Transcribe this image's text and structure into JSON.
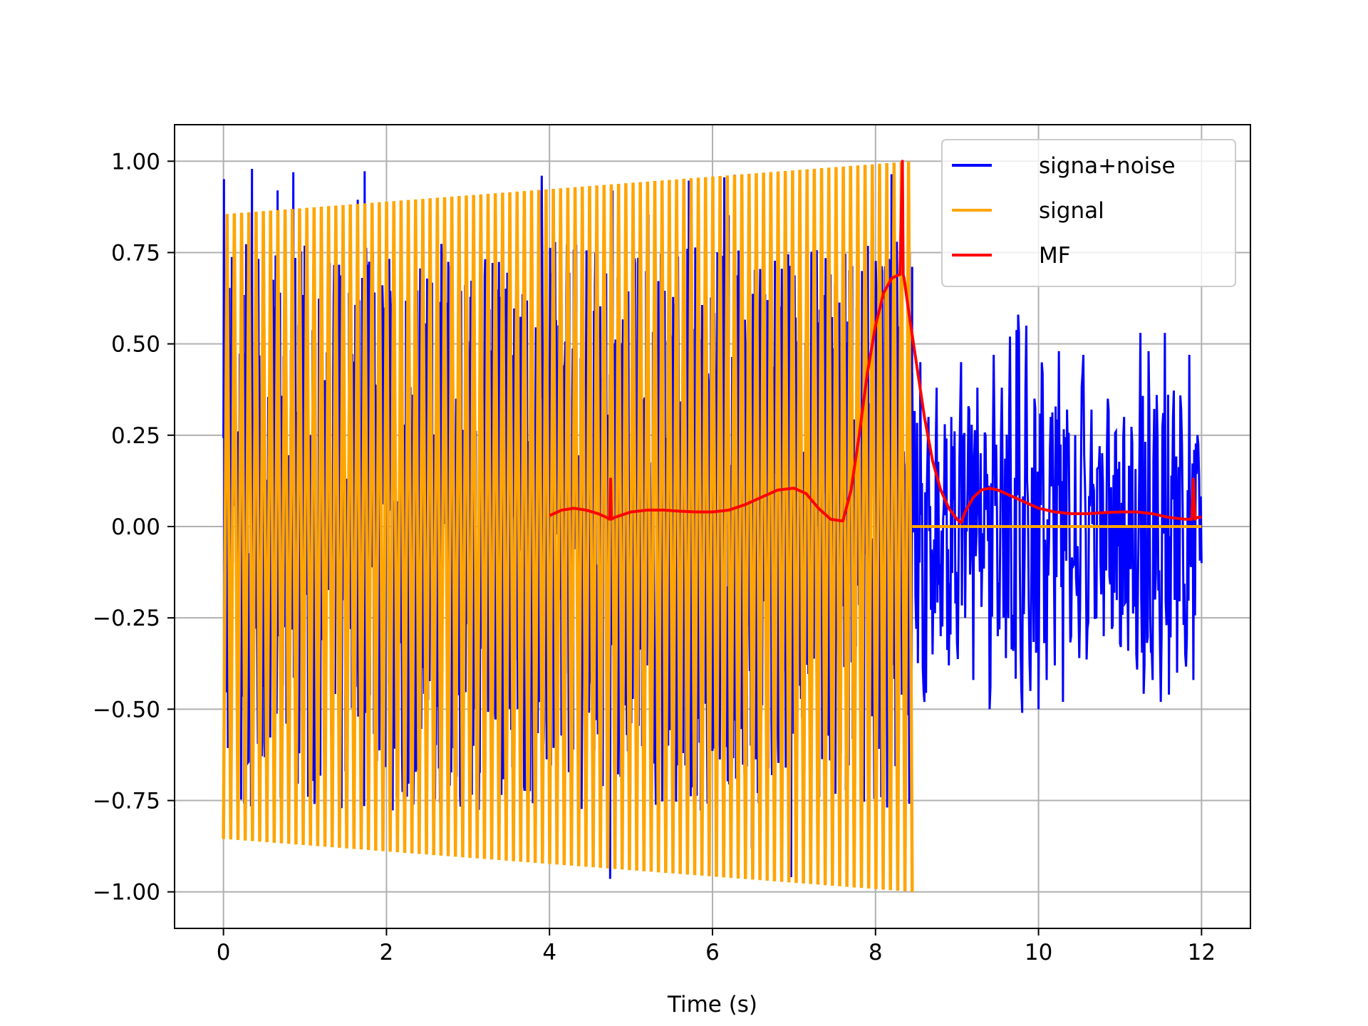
{
  "chart_data": {
    "type": "line",
    "title": "",
    "xlabel": "Time (s)",
    "ylabel": "",
    "xlim": [
      -0.6,
      12.6
    ],
    "ylim": [
      -1.1,
      1.1
    ],
    "grid": true,
    "legend_position": "top-right",
    "x_ticks": [
      0,
      2,
      4,
      6,
      8,
      10,
      12
    ],
    "x_tick_labels": [
      "0",
      "2",
      "4",
      "6",
      "8",
      "10",
      "12"
    ],
    "y_ticks": [
      1.0,
      0.75,
      0.5,
      0.25,
      0.0,
      -0.25,
      -0.5,
      -0.75,
      -1.0
    ],
    "y_tick_labels": [
      "1.00",
      "0.75",
      "0.50",
      "0.25",
      "0.00",
      "−0.25",
      "−0.50",
      "−0.75",
      "−1.00"
    ],
    "series": [
      {
        "name": "signa+noise",
        "color": "#0000ff",
        "segments": [
          {
            "x_range": [
              0,
              8.45
            ],
            "envelope_min": -1.0,
            "envelope_max": 1.0
          },
          {
            "x": [
              8.45,
              8.5,
              8.55,
              8.6,
              8.65,
              8.7,
              8.75,
              8.8,
              8.85,
              8.9,
              8.95,
              9.0,
              9.05,
              9.1,
              9.15,
              9.2,
              9.25,
              9.3,
              9.35,
              9.4,
              9.45,
              9.5,
              9.55,
              9.6,
              9.65,
              9.7,
              9.75,
              9.8,
              9.85,
              9.9,
              9.95,
              10.0,
              10.05,
              10.1,
              10.15,
              10.2,
              10.25,
              10.3,
              10.35,
              10.4,
              10.45,
              10.5,
              10.55,
              10.6,
              10.65,
              10.7,
              10.75,
              10.8,
              10.85,
              10.9,
              10.95,
              11.0,
              11.05,
              11.1,
              11.15,
              11.2,
              11.25,
              11.3,
              11.35,
              11.4,
              11.45,
              11.5,
              11.55,
              11.6,
              11.65,
              11.7,
              11.75,
              11.8,
              11.85,
              11.9,
              11.95,
              12.0
            ],
            "y": [
              0.42,
              -0.28,
              0.45,
              -0.48,
              0.3,
              -0.35,
              0.38,
              -0.3,
              0.28,
              -0.38,
              0.22,
              -0.32,
              0.45,
              -0.25,
              0.32,
              -0.42,
              0.38,
              -0.22,
              0.25,
              -0.5,
              0.47,
              -0.3,
              0.38,
              -0.36,
              0.52,
              -0.28,
              0.58,
              -0.51,
              0.55,
              -0.45,
              0.35,
              -0.5,
              0.42,
              -0.42,
              0.3,
              -0.38,
              0.48,
              -0.48,
              0.32,
              -0.3,
              0.25,
              -0.36,
              0.47,
              -0.28,
              0.32,
              -0.25,
              0.22,
              -0.3,
              0.35,
              -0.28,
              0.26,
              -0.32,
              0.3,
              -0.34,
              0.23,
              -0.35,
              0.53,
              -0.38,
              0.48,
              -0.42,
              0.36,
              -0.48,
              0.53,
              -0.46,
              0.3,
              -0.4,
              0.32,
              -0.35,
              0.47,
              -0.42,
              0.25,
              -0.1
            ]
          }
        ]
      },
      {
        "name": "signal",
        "color": "#ffa500",
        "segments": [
          {
            "x_range": [
              0,
              8.45
            ],
            "envelope_start": 0.855,
            "envelope_end": 1.0
          },
          {
            "x": [
              8.45,
              12.0
            ],
            "y": [
              0.0,
              0.0
            ]
          }
        ]
      },
      {
        "name": "MF",
        "color": "#ff0000",
        "x": [
          4.0,
          4.15,
          4.3,
          4.45,
          4.6,
          4.7,
          4.74,
          4.75,
          4.76,
          4.8,
          5.0,
          5.2,
          5.4,
          5.6,
          5.8,
          6.0,
          6.2,
          6.4,
          6.6,
          6.8,
          7.0,
          7.15,
          7.3,
          7.45,
          7.6,
          7.7,
          7.8,
          7.9,
          8.0,
          8.1,
          8.2,
          8.3,
          8.33,
          8.34,
          8.35,
          8.4,
          8.5,
          8.6,
          8.7,
          8.8,
          8.9,
          9.0,
          9.05,
          9.1,
          9.2,
          9.3,
          9.4,
          9.5,
          9.6,
          9.7,
          9.8,
          10.0,
          10.2,
          10.4,
          10.6,
          10.8,
          11.0,
          11.2,
          11.4,
          11.6,
          11.8,
          11.88,
          11.9,
          11.92,
          11.95,
          12.0
        ],
        "y": [
          0.03,
          0.045,
          0.05,
          0.045,
          0.035,
          0.025,
          0.02,
          0.13,
          0.02,
          0.025,
          0.04,
          0.045,
          0.045,
          0.042,
          0.04,
          0.04,
          0.045,
          0.06,
          0.08,
          0.1,
          0.105,
          0.09,
          0.05,
          0.02,
          0.015,
          0.1,
          0.25,
          0.42,
          0.55,
          0.64,
          0.68,
          0.69,
          1.0,
          0.69,
          0.68,
          0.6,
          0.45,
          0.3,
          0.18,
          0.1,
          0.05,
          0.02,
          0.01,
          0.04,
          0.08,
          0.1,
          0.105,
          0.1,
          0.09,
          0.08,
          0.07,
          0.05,
          0.04,
          0.035,
          0.035,
          0.038,
          0.04,
          0.04,
          0.035,
          0.025,
          0.02,
          0.02,
          0.13,
          0.02,
          0.025,
          0.025
        ]
      }
    ]
  }
}
